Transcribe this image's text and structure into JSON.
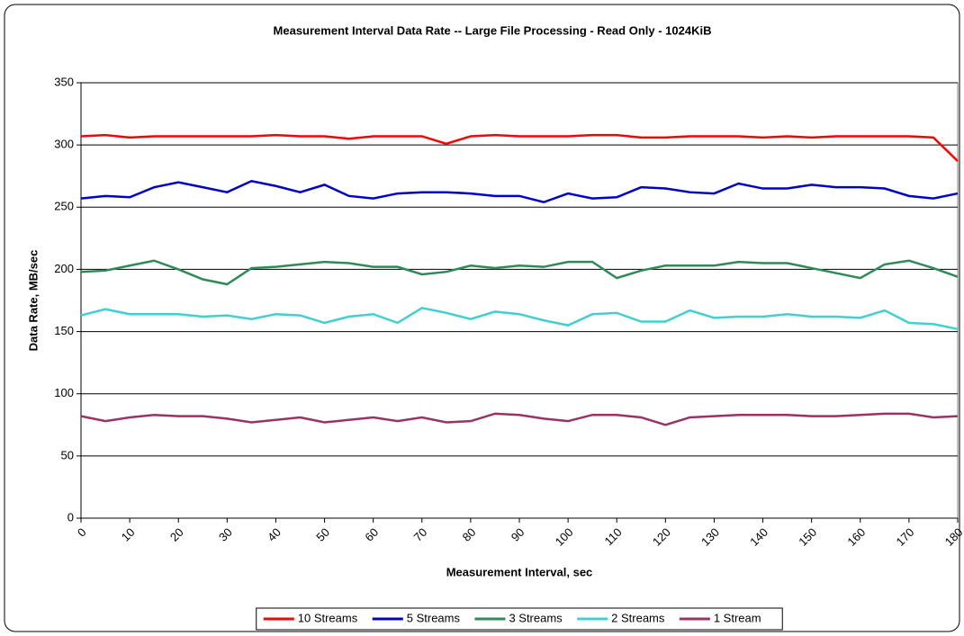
{
  "chart_data": {
    "type": "line",
    "title": "Measurement Interval Data Rate -- Large File Processing - Read Only - 1024KiB",
    "xlabel": "Measurement Interval, sec",
    "ylabel": "Data Rate, MB/sec",
    "x": [
      0,
      5,
      10,
      15,
      20,
      25,
      30,
      35,
      40,
      45,
      50,
      55,
      60,
      65,
      70,
      75,
      80,
      85,
      90,
      95,
      100,
      105,
      110,
      115,
      120,
      125,
      130,
      135,
      140,
      145,
      150,
      155,
      160,
      165,
      170,
      175,
      180
    ],
    "xlim": [
      0,
      180
    ],
    "xticks": [
      0,
      10,
      20,
      30,
      40,
      50,
      60,
      70,
      80,
      90,
      100,
      110,
      120,
      130,
      140,
      150,
      160,
      170,
      180
    ],
    "ylim": [
      0,
      350
    ],
    "yticks": [
      0,
      50,
      100,
      150,
      200,
      250,
      300,
      350
    ],
    "grid": true,
    "legend": "bottom",
    "series": [
      {
        "name": "10 Streams",
        "color": "#ff0000",
        "values": [
          307,
          308,
          306,
          307,
          307,
          307,
          307,
          307,
          308,
          307,
          307,
          305,
          307,
          307,
          307,
          301,
          307,
          308,
          307,
          307,
          307,
          308,
          308,
          306,
          306,
          307,
          307,
          307,
          306,
          307,
          306,
          307,
          307,
          307,
          307,
          306,
          287
        ]
      },
      {
        "name": "5 Streams",
        "color": "#0000cc",
        "values": [
          257,
          259,
          258,
          266,
          270,
          266,
          262,
          271,
          267,
          262,
          268,
          259,
          257,
          261,
          262,
          262,
          261,
          259,
          259,
          254,
          261,
          257,
          258,
          266,
          265,
          262,
          261,
          269,
          265,
          265,
          268,
          266,
          266,
          265,
          259,
          257,
          261
        ]
      },
      {
        "name": "3 Streams",
        "color": "#2e8b57",
        "values": [
          198,
          199,
          203,
          207,
          200,
          192,
          188,
          201,
          202,
          204,
          206,
          205,
          202,
          202,
          196,
          198,
          203,
          201,
          203,
          202,
          206,
          206,
          193,
          199,
          203,
          203,
          203,
          206,
          205,
          205,
          201,
          197,
          193,
          204,
          207,
          201,
          194
        ]
      },
      {
        "name": "2 Streams",
        "color": "#40d0d0",
        "values": [
          163,
          168,
          164,
          164,
          164,
          162,
          163,
          160,
          164,
          163,
          157,
          162,
          164,
          157,
          169,
          165,
          160,
          166,
          164,
          159,
          155,
          164,
          165,
          158,
          158,
          167,
          161,
          162,
          162,
          164,
          162,
          162,
          161,
          167,
          157,
          156,
          152
        ]
      },
      {
        "name": "1 Stream",
        "color": "#993366",
        "values": [
          82,
          78,
          81,
          83,
          82,
          82,
          80,
          77,
          79,
          81,
          77,
          79,
          81,
          78,
          81,
          77,
          78,
          84,
          83,
          80,
          78,
          83,
          83,
          81,
          75,
          81,
          82,
          83,
          83,
          83,
          82,
          82,
          83,
          84,
          84,
          81,
          82
        ]
      }
    ]
  }
}
